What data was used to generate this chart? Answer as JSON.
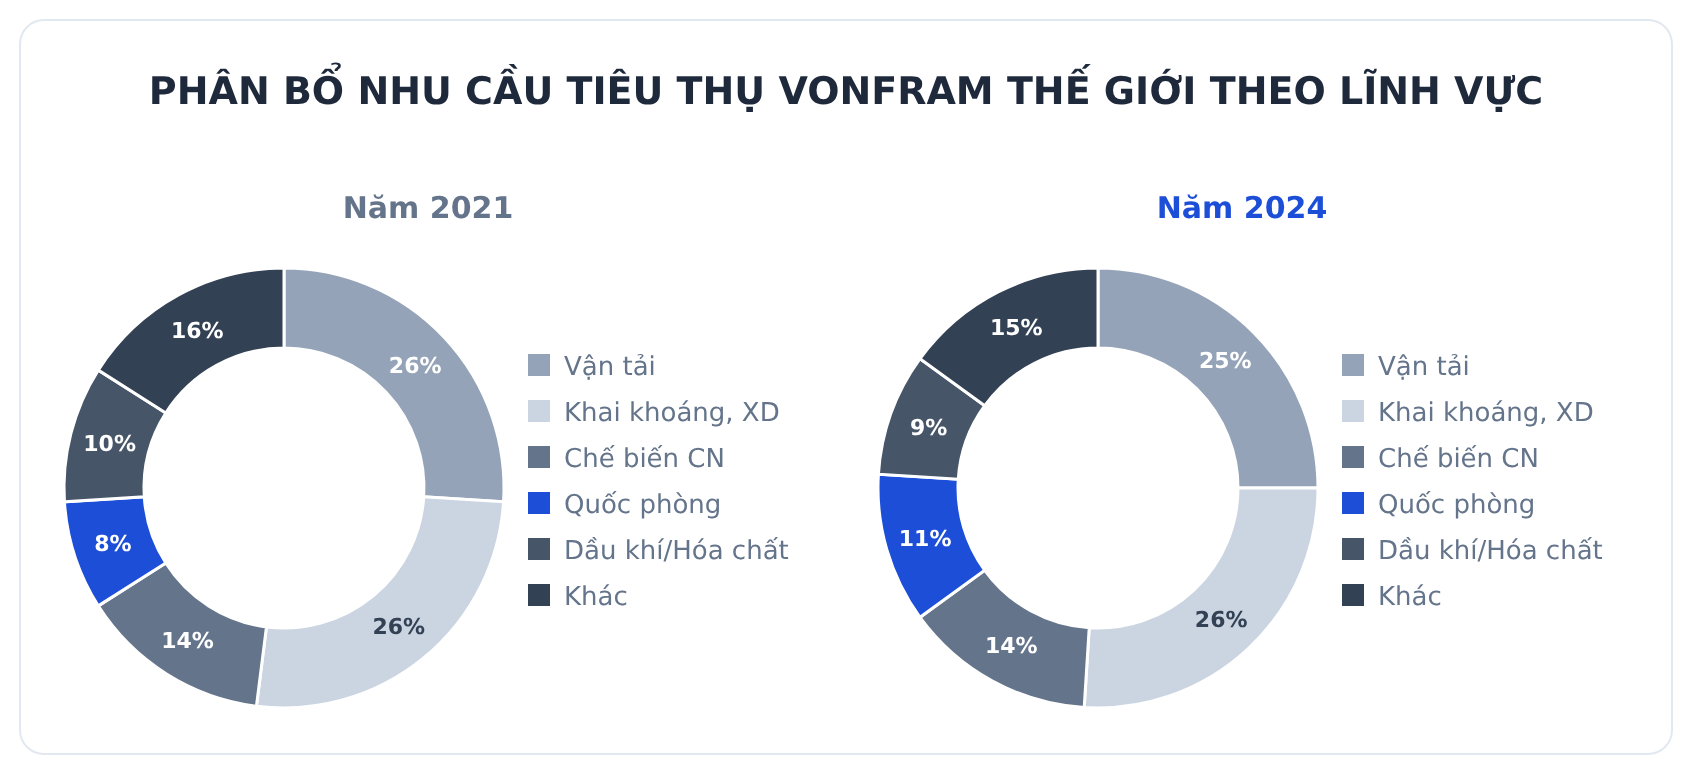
{
  "chart_data": [
    {
      "type": "donut",
      "title": "PHÂN BỔ NHU CẦU TIÊU THỤ VONFRAM THẾ GIỚI THEO LĨNH VỰC",
      "subtitle": "Năm 2021",
      "categories": [
        "Vận tải",
        "Khai khoáng, XD",
        "Chế biến CN",
        "Quốc phòng",
        "Dầu khí/Hóa chất",
        "Khác"
      ],
      "values": [
        26,
        26,
        14,
        8,
        10,
        16
      ],
      "value_labels": [
        "26%",
        "26%",
        "14%",
        "8%",
        "10%",
        "16%"
      ],
      "colors": [
        "#94a3b8",
        "#cbd5e1",
        "#64748b",
        "#1d4ed8",
        "#475569",
        "#334155"
      ],
      "legend": "right"
    },
    {
      "type": "donut",
      "subtitle": "Năm 2024",
      "categories": [
        "Vận tải",
        "Khai khoáng, XD",
        "Chế biến CN",
        "Quốc phòng",
        "Dầu khí/Hóa chất",
        "Khác"
      ],
      "values": [
        25,
        26,
        14,
        11,
        9,
        15
      ],
      "value_labels": [
        "25%",
        "26%",
        "14%",
        "11%",
        "9%",
        "15%"
      ],
      "colors": [
        "#94a3b8",
        "#cbd5e1",
        "#64748b",
        "#1d4ed8",
        "#475569",
        "#334155"
      ],
      "legend": "right"
    }
  ]
}
